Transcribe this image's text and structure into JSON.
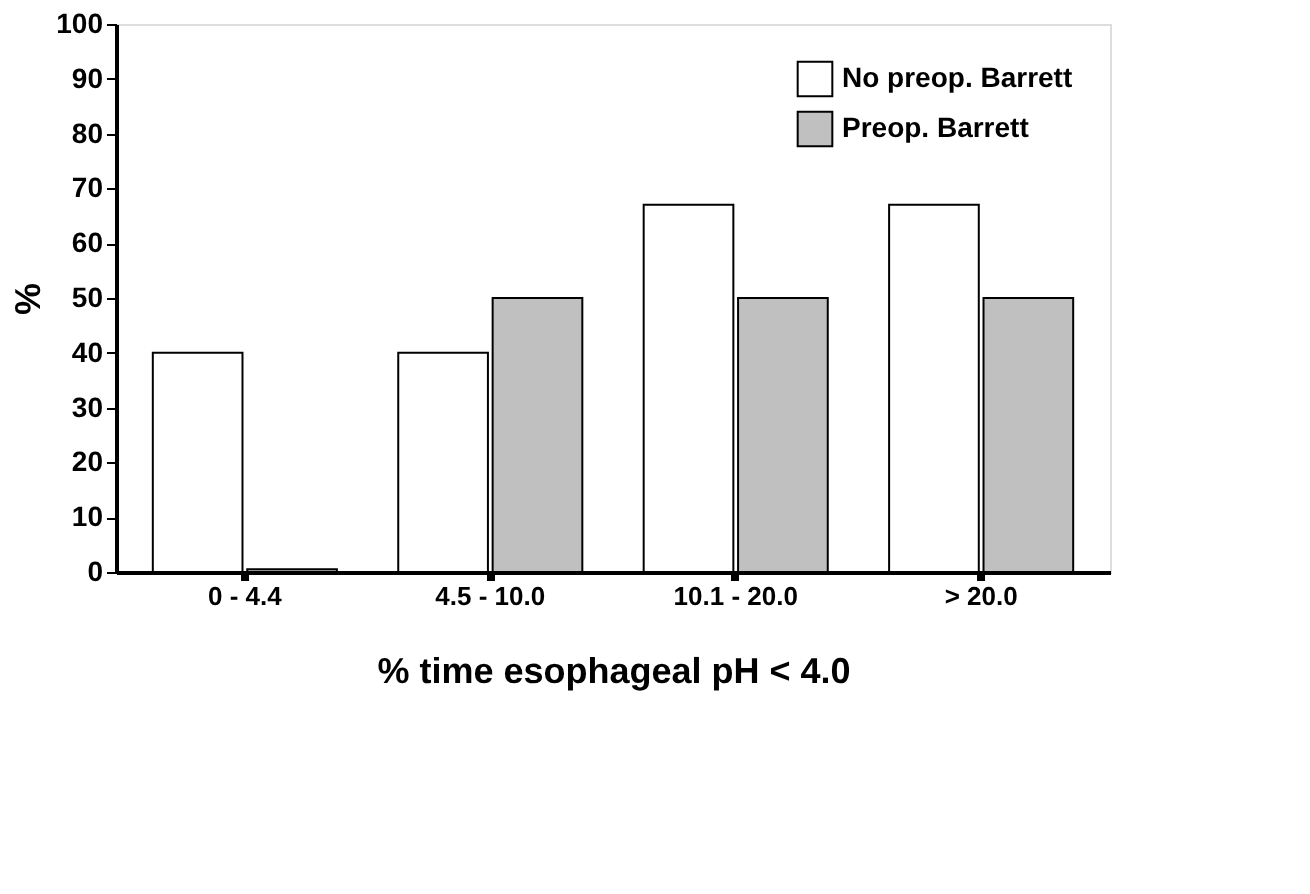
{
  "chart_data": {
    "type": "bar",
    "xlabel": "% time esophageal pH < 4.0",
    "ylabel": "%",
    "categories": [
      "0 - 4.4",
      "4.5 - 10.0",
      "10.1 - 20.0",
      "> 20.0"
    ],
    "series": [
      {
        "name": "No preop. Barrett",
        "color": "#ffffff",
        "values": [
          40,
          40,
          67,
          67
        ]
      },
      {
        "name": "Preop. Barrett",
        "color": "#c0c0c0",
        "values": [
          0.5,
          50,
          50,
          50
        ]
      }
    ],
    "ylim": [
      0,
      100
    ],
    "yticks": [
      0,
      10,
      20,
      30,
      40,
      50,
      60,
      70,
      80,
      90,
      100
    ],
    "grid": false,
    "legend": "top right"
  }
}
